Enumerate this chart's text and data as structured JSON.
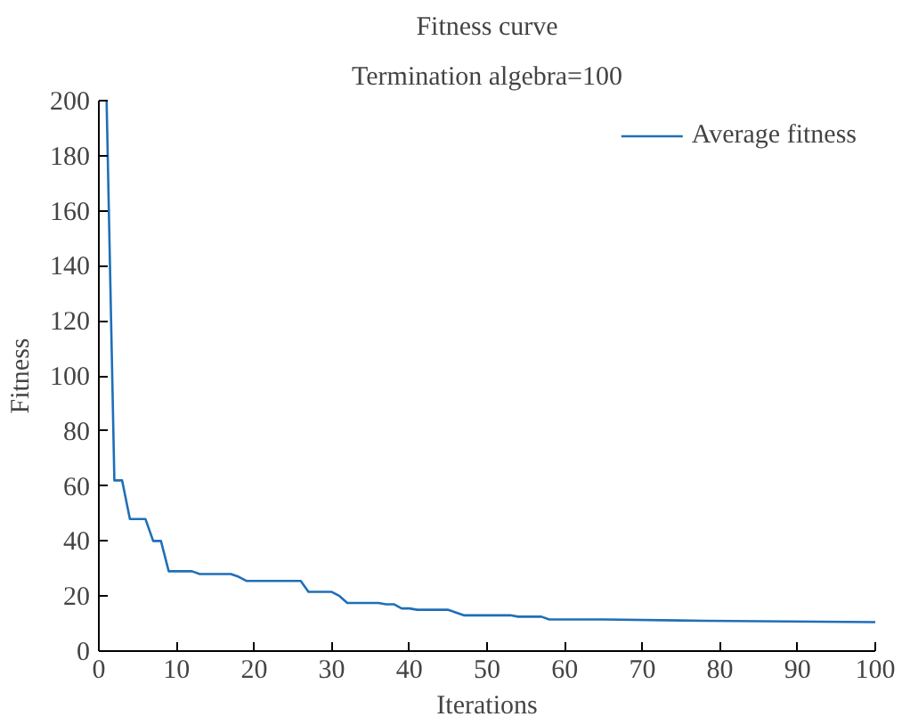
{
  "chart_data": {
    "type": "line",
    "title": "Fitness curve",
    "subtitle": "Termination algebra=100",
    "xlabel": "Iterations",
    "ylabel": "Fitness",
    "xlim": [
      0,
      100
    ],
    "ylim": [
      0,
      200
    ],
    "xticks": [
      0,
      10,
      20,
      30,
      40,
      50,
      60,
      70,
      80,
      90,
      100
    ],
    "yticks": [
      0,
      20,
      40,
      60,
      80,
      100,
      120,
      140,
      160,
      180,
      200
    ],
    "grid": false,
    "legend": "top right",
    "marker": "none",
    "line_style": "solid",
    "series": [
      {
        "name": "Average fitness",
        "color": "#1f6fb8",
        "x": [
          1,
          2,
          3,
          4,
          6,
          7,
          8,
          9,
          12,
          13,
          17,
          18,
          19,
          26,
          27,
          30,
          31,
          32,
          36,
          37,
          38,
          39,
          40,
          41,
          45,
          46,
          47,
          53,
          54,
          57,
          58,
          65,
          78,
          100
        ],
        "values": [
          200,
          62,
          62,
          48,
          48,
          40,
          40,
          29,
          29,
          28,
          28,
          27,
          25.5,
          25.5,
          21.5,
          21.5,
          20,
          17.5,
          17.5,
          17,
          17,
          15.5,
          15.5,
          15,
          15,
          14,
          13,
          13,
          12.5,
          12.5,
          11.5,
          11.5,
          11,
          10.5
        ]
      }
    ]
  }
}
